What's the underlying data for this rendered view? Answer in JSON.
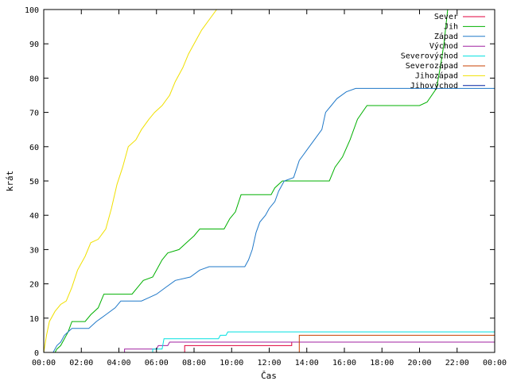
{
  "chart_data": {
    "type": "line",
    "xlabel": "Čas",
    "ylabel": "krát",
    "xlim": [
      0,
      24
    ],
    "ylim": [
      0,
      100
    ],
    "x_ticks": [
      "00:00",
      "02:00",
      "04:00",
      "06:00",
      "08:00",
      "10:00",
      "12:00",
      "14:00",
      "16:00",
      "18:00",
      "20:00",
      "22:00",
      "00:00"
    ],
    "y_ticks": [
      0,
      10,
      20,
      30,
      40,
      50,
      60,
      70,
      80,
      90,
      100
    ],
    "grid": false,
    "legend_position": "top-right",
    "series": [
      {
        "name": "Sever",
        "color": "#e0003c",
        "points": [
          [
            0,
            0
          ],
          [
            7.5,
            0
          ],
          [
            7.5,
            2
          ],
          [
            13.2,
            2
          ],
          [
            13.2,
            3
          ],
          [
            24,
            3
          ]
        ]
      },
      {
        "name": "Jih",
        "color": "#00b000",
        "points": [
          [
            0,
            0
          ],
          [
            0.6,
            0
          ],
          [
            0.7,
            1
          ],
          [
            0.9,
            2
          ],
          [
            1.1,
            4
          ],
          [
            1.3,
            6
          ],
          [
            1.5,
            9
          ],
          [
            2.2,
            9
          ],
          [
            2.5,
            11
          ],
          [
            2.9,
            13
          ],
          [
            3.2,
            17
          ],
          [
            4.7,
            17
          ],
          [
            5.0,
            19
          ],
          [
            5.3,
            21
          ],
          [
            5.8,
            22
          ],
          [
            6.0,
            24
          ],
          [
            6.3,
            27
          ],
          [
            6.6,
            29
          ],
          [
            7.2,
            30
          ],
          [
            7.6,
            32
          ],
          [
            8.0,
            34
          ],
          [
            8.3,
            36
          ],
          [
            9.6,
            36
          ],
          [
            9.9,
            39
          ],
          [
            10.2,
            41
          ],
          [
            10.5,
            46
          ],
          [
            12.1,
            46
          ],
          [
            12.3,
            48
          ],
          [
            12.7,
            50
          ],
          [
            15.2,
            50
          ],
          [
            15.5,
            54
          ],
          [
            15.9,
            57
          ],
          [
            16.3,
            62
          ],
          [
            16.7,
            68
          ],
          [
            17.2,
            72
          ],
          [
            20.0,
            72
          ],
          [
            20.4,
            73
          ],
          [
            20.9,
            77
          ],
          [
            21.1,
            83
          ],
          [
            21.3,
            90
          ],
          [
            21.5,
            100
          ]
        ]
      },
      {
        "name": "Západ",
        "color": "#1f78c8",
        "points": [
          [
            0,
            0
          ],
          [
            0.5,
            0
          ],
          [
            0.7,
            2
          ],
          [
            0.9,
            3
          ],
          [
            1.1,
            5
          ],
          [
            1.5,
            7
          ],
          [
            2.4,
            7
          ],
          [
            2.8,
            9
          ],
          [
            3.3,
            11
          ],
          [
            3.8,
            13
          ],
          [
            4.1,
            15
          ],
          [
            5.2,
            15
          ],
          [
            5.6,
            16
          ],
          [
            6.0,
            17
          ],
          [
            6.5,
            19
          ],
          [
            7.0,
            21
          ],
          [
            7.8,
            22
          ],
          [
            8.3,
            24
          ],
          [
            8.8,
            25
          ],
          [
            10.7,
            25
          ],
          [
            10.9,
            27
          ],
          [
            11.1,
            30
          ],
          [
            11.3,
            35
          ],
          [
            11.5,
            38
          ],
          [
            11.8,
            40
          ],
          [
            12.0,
            42
          ],
          [
            12.3,
            44
          ],
          [
            12.5,
            47
          ],
          [
            12.8,
            50
          ],
          [
            13.3,
            51
          ],
          [
            13.6,
            56
          ],
          [
            14.0,
            59
          ],
          [
            14.4,
            62
          ],
          [
            14.8,
            65
          ],
          [
            15.0,
            70
          ],
          [
            15.3,
            72
          ],
          [
            15.6,
            74
          ],
          [
            16.1,
            76
          ],
          [
            16.6,
            77
          ],
          [
            24,
            77
          ]
        ]
      },
      {
        "name": "Východ",
        "color": "#a020a0",
        "points": [
          [
            0,
            0
          ],
          [
            4.3,
            0
          ],
          [
            4.3,
            1
          ],
          [
            6.0,
            1
          ],
          [
            6.1,
            2
          ],
          [
            6.6,
            2
          ],
          [
            6.7,
            3
          ],
          [
            24,
            3
          ]
        ]
      },
      {
        "name": "Severovýchod",
        "color": "#00e0e0",
        "points": [
          [
            0,
            0
          ],
          [
            5.8,
            0
          ],
          [
            5.8,
            1
          ],
          [
            6.3,
            1
          ],
          [
            6.4,
            4
          ],
          [
            9.3,
            4
          ],
          [
            9.4,
            5
          ],
          [
            9.7,
            5
          ],
          [
            9.8,
            6
          ],
          [
            24,
            6
          ]
        ]
      },
      {
        "name": "Severozápad",
        "color": "#c84000",
        "points": [
          [
            0,
            0
          ],
          [
            13.6,
            0
          ],
          [
            13.6,
            5
          ],
          [
            24,
            5
          ]
        ]
      },
      {
        "name": "Jihozápad",
        "color": "#f0e000",
        "points": [
          [
            0,
            0
          ],
          [
            0.15,
            5
          ],
          [
            0.3,
            9
          ],
          [
            0.6,
            12
          ],
          [
            0.9,
            14
          ],
          [
            1.2,
            15
          ],
          [
            1.5,
            19
          ],
          [
            1.8,
            24
          ],
          [
            2.2,
            28
          ],
          [
            2.5,
            32
          ],
          [
            2.9,
            33
          ],
          [
            3.3,
            36
          ],
          [
            3.6,
            42
          ],
          [
            3.9,
            49
          ],
          [
            4.2,
            54
          ],
          [
            4.5,
            60
          ],
          [
            4.9,
            62
          ],
          [
            5.2,
            65
          ],
          [
            5.6,
            68
          ],
          [
            5.9,
            70
          ],
          [
            6.3,
            72
          ],
          [
            6.7,
            75
          ],
          [
            7.0,
            79
          ],
          [
            7.4,
            83
          ],
          [
            7.7,
            87
          ],
          [
            8.0,
            90
          ],
          [
            8.4,
            94
          ],
          [
            8.8,
            97
          ],
          [
            9.2,
            100
          ]
        ]
      },
      {
        "name": "Jihovýchod",
        "color": "#0020a0",
        "points": []
      }
    ]
  }
}
